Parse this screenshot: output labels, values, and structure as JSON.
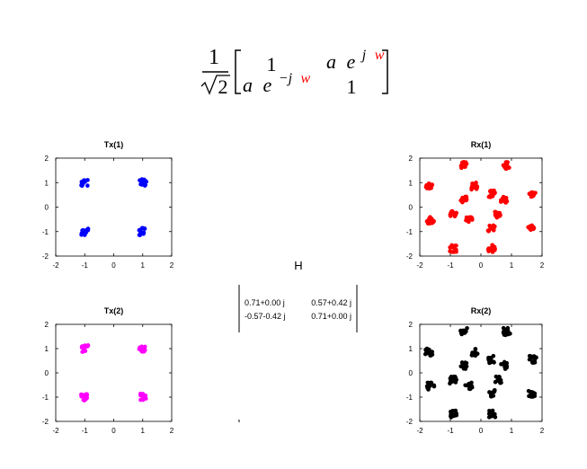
{
  "formula": {
    "numerator": "1",
    "denominator_sqrt": "2",
    "m11": "1",
    "m21_a": "a",
    "m21_e": "e",
    "m21_exp": "−j",
    "m21_w": "w",
    "m12_a": "a",
    "m12_e": "e",
    "m12_exp": "j",
    "m12_w": "w",
    "m22": "1",
    "w_color": "#ff0000"
  },
  "h_matrix": {
    "label": "H",
    "rows": [
      [
        "0.71+0.00 j",
        "0.57+0.42 j"
      ],
      [
        "-0.57-0.42 j",
        "0.71+0.00 j"
      ]
    ]
  },
  "chart_data": [
    {
      "type": "scatter",
      "title": "Tx(1)",
      "color": "#0000ff",
      "xlim": [
        -2,
        2
      ],
      "ylim": [
        -2,
        2
      ],
      "xticks": [
        "-2",
        "-1",
        "0",
        "1",
        "2"
      ],
      "yticks": [
        "-2",
        "-1",
        "0",
        "1",
        "2"
      ],
      "x": [
        -1,
        1,
        -1,
        1
      ],
      "y": [
        1,
        1,
        -1,
        -1
      ]
    },
    {
      "type": "scatter",
      "title": "Rx(1)",
      "color": "#ff0000",
      "xlim": [
        -2,
        2
      ],
      "ylim": [
        -2,
        2
      ],
      "xticks": [
        "-2",
        "-1",
        "0",
        "1",
        "2"
      ],
      "yticks": [
        "-2",
        "-1",
        "0",
        "1",
        "2"
      ],
      "x": [
        -0.55,
        0.85,
        -1.7,
        1.7,
        -0.2,
        -0.55,
        0.35,
        0.75,
        -0.9,
        -0.4,
        0.55,
        -1.65,
        0.35,
        1.65,
        -0.9,
        0.35
      ],
      "y": [
        1.7,
        1.7,
        0.85,
        0.55,
        0.85,
        0.3,
        0.55,
        0.3,
        -0.3,
        -0.55,
        -0.3,
        -0.55,
        -0.85,
        -0.85,
        -1.7,
        -1.7
      ]
    },
    {
      "type": "scatter",
      "title": "Tx(2)",
      "color": "#ff00ff",
      "xlim": [
        -2,
        2
      ],
      "ylim": [
        -2,
        2
      ],
      "xticks": [
        "-2",
        "-1",
        "0",
        "1",
        "2"
      ],
      "yticks": [
        "-2",
        "-1",
        "0",
        "1",
        "2"
      ],
      "x": [
        -1,
        1,
        -1,
        1
      ],
      "y": [
        1,
        1,
        -1,
        -1
      ]
    },
    {
      "type": "scatter",
      "title": "Rx(2)",
      "color": "#000000",
      "xlim": [
        -2,
        2
      ],
      "ylim": [
        -2,
        2
      ],
      "xticks": [
        "-2",
        "-1",
        "0",
        "1",
        "2"
      ],
      "yticks": [
        "-2",
        "-1",
        "0",
        "1",
        "2"
      ],
      "x": [
        -0.55,
        0.85,
        -1.7,
        1.7,
        -0.2,
        -0.55,
        0.35,
        0.75,
        -0.9,
        -0.4,
        0.55,
        -1.65,
        0.35,
        1.65,
        -0.9,
        0.35
      ],
      "y": [
        1.7,
        1.7,
        0.85,
        0.55,
        0.85,
        0.3,
        0.55,
        0.3,
        -0.3,
        -0.55,
        -0.3,
        -0.55,
        -0.85,
        -0.85,
        -1.7,
        -1.7
      ]
    }
  ]
}
